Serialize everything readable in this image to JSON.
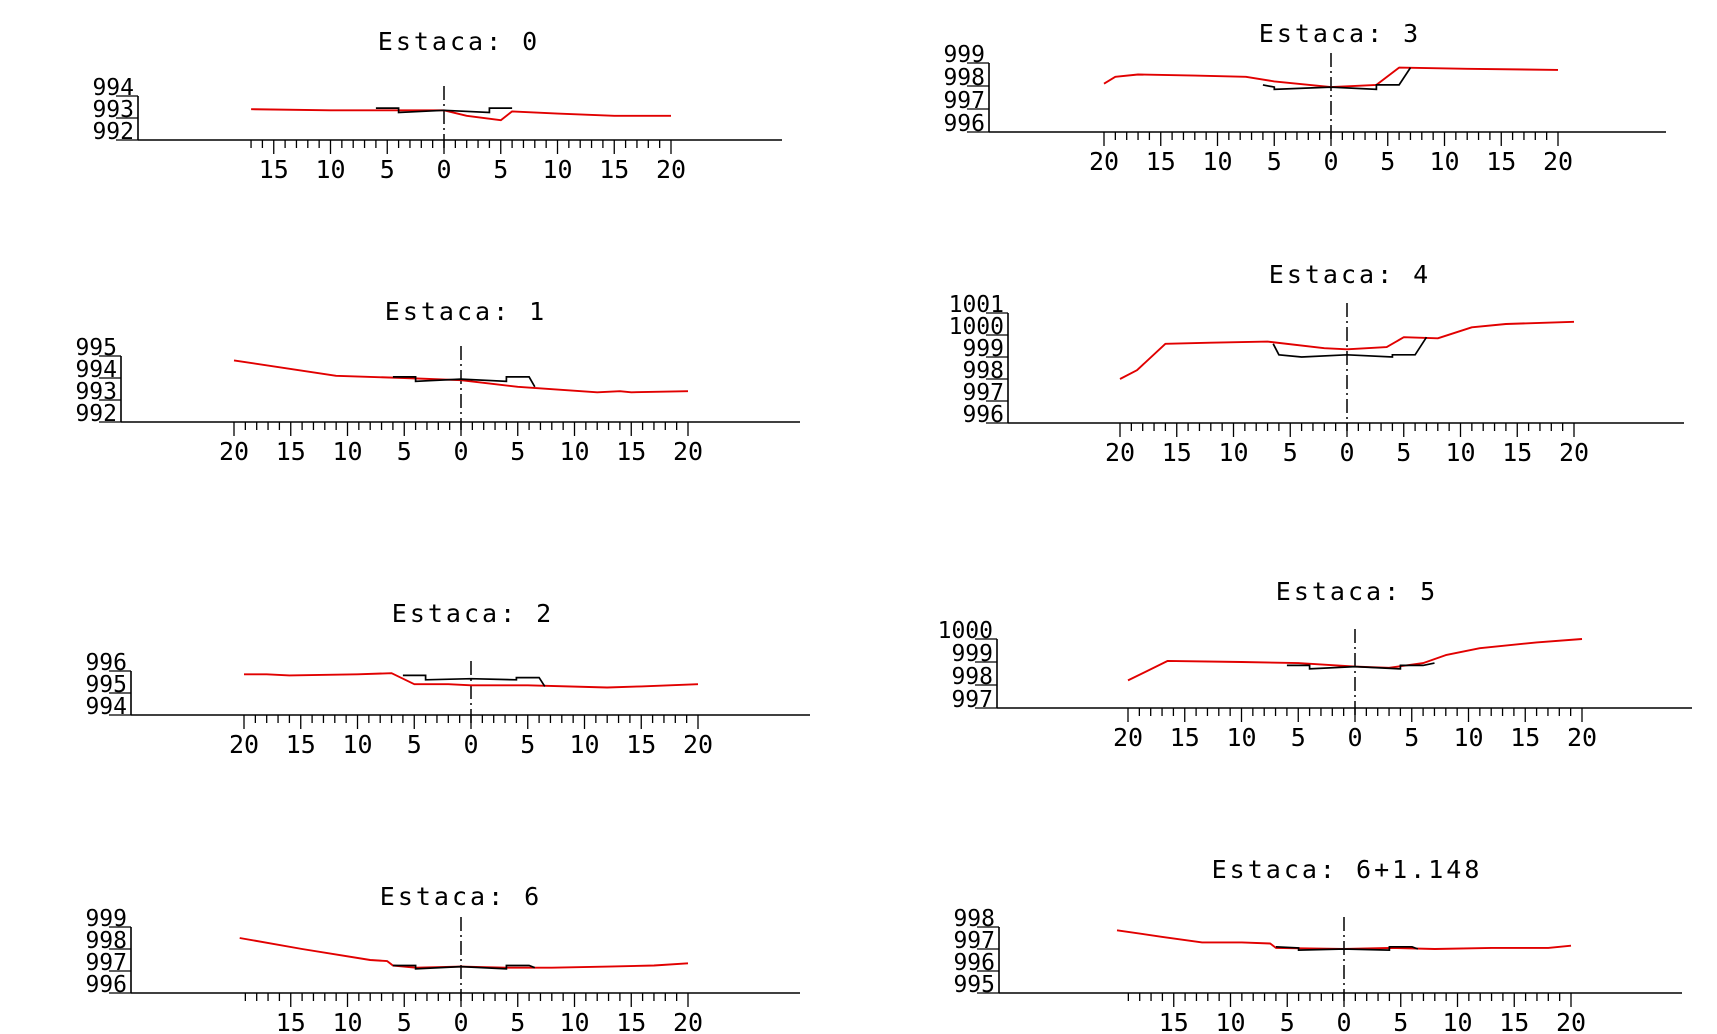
{
  "colors": {
    "terrain": "#e10000",
    "project": "#000000",
    "axes": "#000000",
    "background": "#ffffff"
  },
  "sections": [
    {
      "title": "Estaca:  0",
      "yticks": [
        {
          "v": 994,
          "label": "994"
        },
        {
          "v": 993,
          "label": "993"
        },
        {
          "v": 992,
          "label": "992"
        }
      ],
      "ylim": [
        992,
        994
      ],
      "xlabels": [
        {
          "v": -15,
          "label": "15"
        },
        {
          "v": -10,
          "label": "10"
        },
        {
          "v": -5,
          "label": "5"
        },
        {
          "v": 0,
          "label": "0"
        },
        {
          "v": 5,
          "label": "5"
        },
        {
          "v": 10,
          "label": "10"
        },
        {
          "v": 15,
          "label": "15"
        },
        {
          "v": 20,
          "label": "20"
        }
      ],
      "xticks_range": [
        -17,
        20
      ],
      "terrain": [
        [
          -17,
          993.4
        ],
        [
          -10,
          993.35
        ],
        [
          0,
          993.35
        ],
        [
          2,
          993.1
        ],
        [
          5,
          992.9
        ],
        [
          6,
          993.3
        ],
        [
          10,
          993.2
        ],
        [
          15,
          993.1
        ],
        [
          20,
          993.1
        ]
      ],
      "project": [
        [
          -6,
          993.45
        ],
        [
          -4,
          993.45
        ],
        [
          -4,
          993.25
        ],
        [
          0,
          993.35
        ],
        [
          4,
          993.25
        ],
        [
          4,
          993.45
        ],
        [
          6,
          993.45
        ]
      ]
    },
    {
      "title": "Estaca:  3",
      "yticks": [
        {
          "v": 999,
          "label": "999"
        },
        {
          "v": 998,
          "label": "998"
        },
        {
          "v": 997,
          "label": "997"
        },
        {
          "v": 996,
          "label": "996"
        }
      ],
      "ylim": [
        996,
        999
      ],
      "xlabels": [
        {
          "v": -20,
          "label": "20"
        },
        {
          "v": -15,
          "label": "15"
        },
        {
          "v": -10,
          "label": "10"
        },
        {
          "v": -5,
          "label": "5"
        },
        {
          "v": 0,
          "label": "0"
        },
        {
          "v": 5,
          "label": "5"
        },
        {
          "v": 10,
          "label": "10"
        },
        {
          "v": 15,
          "label": "15"
        },
        {
          "v": 20,
          "label": "20"
        }
      ],
      "xticks_range": [
        -20,
        20
      ],
      "terrain": [
        [
          -20,
          998.1
        ],
        [
          -19,
          998.4
        ],
        [
          -17,
          998.5
        ],
        [
          -12,
          998.45
        ],
        [
          -7.5,
          998.4
        ],
        [
          -5,
          998.2
        ],
        [
          0,
          997.95
        ],
        [
          4,
          998.05
        ],
        [
          6,
          998.8
        ],
        [
          12,
          998.75
        ],
        [
          20,
          998.7
        ]
      ],
      "project": [
        [
          -6,
          998.05
        ],
        [
          -5,
          997.95
        ],
        [
          -5,
          997.85
        ],
        [
          0,
          997.95
        ],
        [
          4,
          997.85
        ],
        [
          4,
          998.05
        ],
        [
          6,
          998.05
        ],
        [
          7,
          998.8
        ]
      ]
    },
    {
      "title": "Estaca:  1",
      "yticks": [
        {
          "v": 995,
          "label": "995"
        },
        {
          "v": 994,
          "label": "994"
        },
        {
          "v": 993,
          "label": "993"
        },
        {
          "v": 992,
          "label": "992"
        }
      ],
      "ylim": [
        992,
        995
      ],
      "xlabels": [
        {
          "v": -20,
          "label": "20"
        },
        {
          "v": -15,
          "label": "15"
        },
        {
          "v": -10,
          "label": "10"
        },
        {
          "v": -5,
          "label": "5"
        },
        {
          "v": 0,
          "label": "0"
        },
        {
          "v": 5,
          "label": "5"
        },
        {
          "v": 10,
          "label": "10"
        },
        {
          "v": 15,
          "label": "15"
        },
        {
          "v": 20,
          "label": "20"
        }
      ],
      "xticks_range": [
        -20,
        20
      ],
      "terrain": [
        [
          -20,
          994.8
        ],
        [
          -11,
          994.1
        ],
        [
          -5,
          994.0
        ],
        [
          0,
          993.9
        ],
        [
          5,
          993.6
        ],
        [
          12,
          993.35
        ],
        [
          14,
          993.4
        ],
        [
          15,
          993.35
        ],
        [
          20,
          993.4
        ]
      ],
      "project": [
        [
          -6,
          994.05
        ],
        [
          -4,
          994.05
        ],
        [
          -4,
          993.85
        ],
        [
          0,
          993.95
        ],
        [
          4,
          993.85
        ],
        [
          4,
          994.05
        ],
        [
          6,
          994.05
        ],
        [
          6.5,
          993.6
        ]
      ]
    },
    {
      "title": "Estaca:  4",
      "yticks": [
        {
          "v": 1001,
          "label": "1001"
        },
        {
          "v": 1000,
          "label": "1000"
        },
        {
          "v": 999,
          "label": "999"
        },
        {
          "v": 998,
          "label": "998"
        },
        {
          "v": 997,
          "label": "997"
        },
        {
          "v": 996,
          "label": "996"
        }
      ],
      "ylim": [
        996,
        1001
      ],
      "xlabels": [
        {
          "v": -20,
          "label": "20"
        },
        {
          "v": -15,
          "label": "15"
        },
        {
          "v": -10,
          "label": "10"
        },
        {
          "v": -5,
          "label": "5"
        },
        {
          "v": 0,
          "label": "0"
        },
        {
          "v": 5,
          "label": "5"
        },
        {
          "v": 10,
          "label": "10"
        },
        {
          "v": 15,
          "label": "15"
        },
        {
          "v": 20,
          "label": "20"
        }
      ],
      "xticks_range": [
        -20,
        20
      ],
      "terrain": [
        [
          -20,
          998.0
        ],
        [
          -18.5,
          998.4
        ],
        [
          -16,
          999.6
        ],
        [
          -12,
          999.65
        ],
        [
          -7,
          999.7
        ],
        [
          -2,
          999.4
        ],
        [
          0,
          999.35
        ],
        [
          3.5,
          999.45
        ],
        [
          5,
          999.9
        ],
        [
          8,
          999.85
        ],
        [
          11,
          1000.35
        ],
        [
          14,
          1000.5
        ],
        [
          20,
          1000.6
        ]
      ],
      "project": [
        [
          -6.5,
          999.6
        ],
        [
          -6,
          999.1
        ],
        [
          -4,
          999.0
        ],
        [
          0,
          999.1
        ],
        [
          4,
          999.0
        ],
        [
          4,
          999.1
        ],
        [
          6,
          999.1
        ],
        [
          7,
          999.9
        ]
      ]
    },
    {
      "title": "Estaca:  2",
      "yticks": [
        {
          "v": 996,
          "label": "996"
        },
        {
          "v": 995,
          "label": "995"
        },
        {
          "v": 994,
          "label": "994"
        }
      ],
      "ylim": [
        994,
        996
      ],
      "xlabels": [
        {
          "v": -20,
          "label": "20"
        },
        {
          "v": -15,
          "label": "15"
        },
        {
          "v": -10,
          "label": "10"
        },
        {
          "v": -5,
          "label": "5"
        },
        {
          "v": 0,
          "label": "0"
        },
        {
          "v": 5,
          "label": "5"
        },
        {
          "v": 10,
          "label": "10"
        },
        {
          "v": 15,
          "label": "15"
        },
        {
          "v": 20,
          "label": "20"
        }
      ],
      "xticks_range": [
        -20,
        20
      ],
      "terrain": [
        [
          -20,
          995.85
        ],
        [
          -18,
          995.85
        ],
        [
          -16,
          995.8
        ],
        [
          -10,
          995.85
        ],
        [
          -7,
          995.9
        ],
        [
          -5,
          995.4
        ],
        [
          -2,
          995.4
        ],
        [
          0,
          995.35
        ],
        [
          5,
          995.35
        ],
        [
          12,
          995.25
        ],
        [
          15,
          995.3
        ],
        [
          20,
          995.4
        ]
      ],
      "project": [
        [
          -6,
          995.8
        ],
        [
          -4,
          995.8
        ],
        [
          -4,
          995.6
        ],
        [
          0,
          995.65
        ],
        [
          4,
          995.6
        ],
        [
          4,
          995.7
        ],
        [
          6,
          995.7
        ],
        [
          6.5,
          995.3
        ]
      ]
    },
    {
      "title": "Estaca:  5",
      "yticks": [
        {
          "v": 1000,
          "label": "1000"
        },
        {
          "v": 999,
          "label": "999"
        },
        {
          "v": 998,
          "label": "998"
        },
        {
          "v": 997,
          "label": "997"
        }
      ],
      "ylim": [
        997,
        1000
      ],
      "xlabels": [
        {
          "v": -20,
          "label": "20"
        },
        {
          "v": -15,
          "label": "15"
        },
        {
          "v": -10,
          "label": "10"
        },
        {
          "v": -5,
          "label": "5"
        },
        {
          "v": 0,
          "label": "0"
        },
        {
          "v": 5,
          "label": "5"
        },
        {
          "v": 10,
          "label": "10"
        },
        {
          "v": 15,
          "label": "15"
        },
        {
          "v": 20,
          "label": "20"
        }
      ],
      "xticks_range": [
        -20,
        20
      ],
      "terrain": [
        [
          -20,
          998.2
        ],
        [
          -16.5,
          999.05
        ],
        [
          -10,
          999.0
        ],
        [
          -5,
          998.95
        ],
        [
          0,
          998.8
        ],
        [
          3,
          998.75
        ],
        [
          6,
          998.95
        ],
        [
          8,
          999.3
        ],
        [
          11,
          999.6
        ],
        [
          16,
          999.85
        ],
        [
          20,
          1000.0
        ]
      ],
      "project": [
        [
          -6,
          998.85
        ],
        [
          -4,
          998.85
        ],
        [
          -4,
          998.7
        ],
        [
          0,
          998.8
        ],
        [
          4,
          998.7
        ],
        [
          4,
          998.85
        ],
        [
          6,
          998.85
        ],
        [
          7,
          998.95
        ]
      ]
    },
    {
      "title": "Estaca:  6",
      "yticks": [
        {
          "v": 999,
          "label": "999"
        },
        {
          "v": 998,
          "label": "998"
        },
        {
          "v": 997,
          "label": "997"
        },
        {
          "v": 996,
          "label": "996"
        }
      ],
      "ylim": [
        996,
        999
      ],
      "xlabels": [
        {
          "v": -15,
          "label": "15"
        },
        {
          "v": -10,
          "label": "10"
        },
        {
          "v": -5,
          "label": "5"
        },
        {
          "v": 0,
          "label": "0"
        },
        {
          "v": 5,
          "label": "5"
        },
        {
          "v": 10,
          "label": "10"
        },
        {
          "v": 15,
          "label": "15"
        },
        {
          "v": 20,
          "label": "20"
        }
      ],
      "xticks_range": [
        -19,
        20
      ],
      "terrain": [
        [
          -19.5,
          998.5
        ],
        [
          -14,
          998.0
        ],
        [
          -8,
          997.5
        ],
        [
          -6.5,
          997.45
        ],
        [
          -6,
          997.25
        ],
        [
          -4,
          997.15
        ],
        [
          0,
          997.2
        ],
        [
          4,
          997.15
        ],
        [
          8,
          997.15
        ],
        [
          13,
          997.2
        ],
        [
          17,
          997.25
        ],
        [
          20,
          997.35
        ]
      ],
      "project": [
        [
          -6,
          997.25
        ],
        [
          -4,
          997.25
        ],
        [
          -4,
          997.1
        ],
        [
          0,
          997.2
        ],
        [
          4,
          997.1
        ],
        [
          4,
          997.25
        ],
        [
          6,
          997.25
        ],
        [
          6.5,
          997.15
        ]
      ]
    },
    {
      "title": "Estaca:  6+1.148",
      "yticks": [
        {
          "v": 998,
          "label": "998"
        },
        {
          "v": 997,
          "label": "997"
        },
        {
          "v": 996,
          "label": "996"
        },
        {
          "v": 995,
          "label": "995"
        }
      ],
      "ylim": [
        995,
        998
      ],
      "xlabels": [
        {
          "v": -15,
          "label": "15"
        },
        {
          "v": -10,
          "label": "10"
        },
        {
          "v": -5,
          "label": "5"
        },
        {
          "v": 0,
          "label": "0"
        },
        {
          "v": 5,
          "label": "5"
        },
        {
          "v": 10,
          "label": "10"
        },
        {
          "v": 15,
          "label": "15"
        },
        {
          "v": 20,
          "label": "20"
        }
      ],
      "xticks_range": [
        -19,
        20
      ],
      "terrain": [
        [
          -20,
          997.85
        ],
        [
          -16,
          997.55
        ],
        [
          -12.5,
          997.3
        ],
        [
          -9,
          997.3
        ],
        [
          -6.5,
          997.25
        ],
        [
          -6,
          997.05
        ],
        [
          0,
          997.0
        ],
        [
          4,
          997.05
        ],
        [
          8,
          997.0
        ],
        [
          13,
          997.05
        ],
        [
          18,
          997.05
        ],
        [
          20,
          997.15
        ]
      ],
      "project": [
        [
          -6,
          997.1
        ],
        [
          -4,
          997.05
        ],
        [
          -4,
          996.95
        ],
        [
          0,
          997.0
        ],
        [
          4,
          996.95
        ],
        [
          4,
          997.1
        ],
        [
          6,
          997.1
        ],
        [
          6.5,
          997.0
        ]
      ]
    }
  ]
}
